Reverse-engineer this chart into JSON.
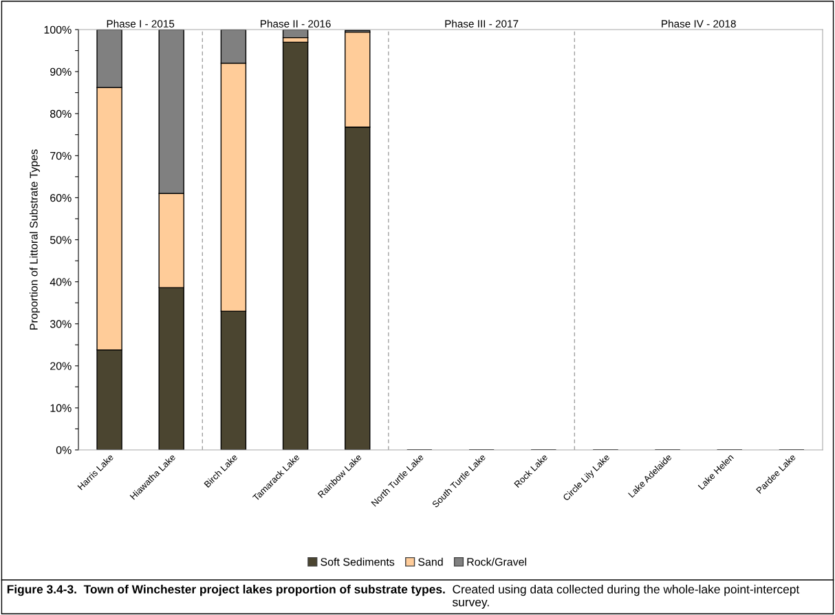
{
  "chart_data": {
    "type": "bar",
    "stacked": true,
    "title": "Figure 3.4-3.  Town of Winchester project lakes proportion of substrate types.",
    "ylabel": "Proportion of Littoral Substrate Types",
    "categories": [
      "Harris Lake",
      "Hiawatha Lake",
      "Birch Lake",
      "Tamarack Lake",
      "Rainbow Lake",
      "North Turtle Lake",
      "South Turtle Lake",
      "Rock Lake",
      "Circle Lily Lake",
      "Lake Adelaide",
      "Lake Helen",
      "Pardee Lake"
    ],
    "series": [
      {
        "name": "Soft Sediments",
        "color": "#4b4530",
        "values": [
          23.8,
          38.6,
          33.0,
          97.0,
          76.8,
          null,
          null,
          null,
          null,
          null,
          null,
          null
        ]
      },
      {
        "name": "Sand",
        "color": "#ffcc99",
        "values": [
          62.4,
          22.4,
          59.0,
          1.1,
          22.6,
          null,
          null,
          null,
          null,
          null,
          null,
          null
        ]
      },
      {
        "name": "Rock/Gravel",
        "color": "#808080",
        "values": [
          13.8,
          39.0,
          8.0,
          1.9,
          0.4,
          null,
          null,
          null,
          null,
          null,
          null,
          null
        ]
      }
    ],
    "ylim": [
      0,
      100
    ],
    "yticks": [
      {
        "value": 0,
        "label": "0%"
      },
      {
        "value": 5,
        "label": null
      },
      {
        "value": 10,
        "label": "10%"
      },
      {
        "value": 15,
        "label": null
      },
      {
        "value": 20,
        "label": "20%"
      },
      {
        "value": 25,
        "label": null
      },
      {
        "value": 30,
        "label": "30%"
      },
      {
        "value": 35,
        "label": null
      },
      {
        "value": 40,
        "label": "40%"
      },
      {
        "value": 45,
        "label": null
      },
      {
        "value": 50,
        "label": "50%"
      },
      {
        "value": 55,
        "label": null
      },
      {
        "value": 60,
        "label": "60%"
      },
      {
        "value": 65,
        "label": null
      },
      {
        "value": 70,
        "label": "70%"
      },
      {
        "value": 75,
        "label": null
      },
      {
        "value": 80,
        "label": "80%"
      },
      {
        "value": 85,
        "label": null
      },
      {
        "value": 90,
        "label": "90%"
      },
      {
        "value": 95,
        "label": null
      },
      {
        "value": 100,
        "label": "100%"
      }
    ],
    "annotations": [
      "Phase I - 2015",
      "Phase II - 2016",
      "Phase III - 2017",
      "Phase IV - 2018",
      "Created using data collected during the whole-lake point-intercept survey."
    ],
    "legend": "bottom",
    "grid": false
  }
}
